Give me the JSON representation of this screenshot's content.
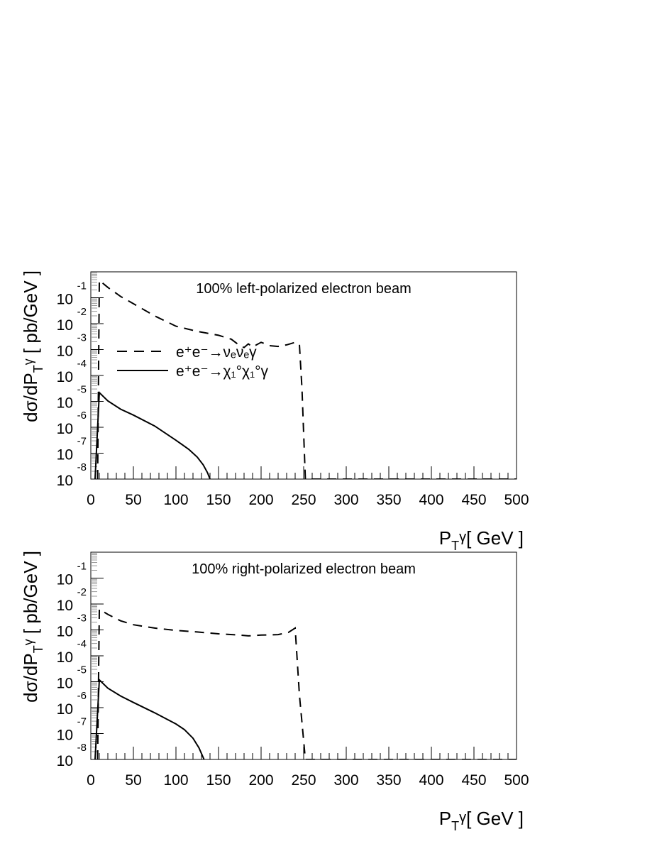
{
  "chart_data": [
    {
      "type": "line",
      "title": "100% left-polarized electron beam",
      "xlabel": {
        "main": "P",
        "sub": "T",
        "sup": "γ",
        "unit": "[ GeV  ]"
      },
      "ylabel": {
        "main": "dσ/dP",
        "sub": "T",
        "sup": "γ",
        "unit": " [ pb/GeV  ]"
      },
      "xlim": [
        0,
        500
      ],
      "ylim_log10": [
        -8,
        0
      ],
      "yscale": "log",
      "xticks": [
        0,
        50,
        100,
        150,
        200,
        250,
        300,
        350,
        400,
        450,
        500
      ],
      "ytick_base": "10",
      "ytick_exponents": [
        "-1",
        "-2",
        "-3",
        "-4",
        "-5",
        "-6",
        "-7",
        "-8"
      ],
      "legend": [
        {
          "label": "e⁺e⁻→νₑνₑγ",
          "style": "dashed"
        },
        {
          "label": "e⁺e⁻→χ₁°χ₁°γ",
          "style": "solid"
        }
      ],
      "series": [
        {
          "name": "e⁺e⁻→νₑνₑγ",
          "style": "dashed",
          "x": [
            8,
            10,
            20,
            35,
            50,
            75,
            100,
            125,
            150,
            165,
            175,
            180,
            185,
            190,
            200,
            210,
            220,
            230,
            240,
            245,
            248,
            252,
            260,
            500
          ],
          "log10_y": [
            -8,
            -0.33,
            -0.6,
            -0.95,
            -1.23,
            -1.7,
            -2.1,
            -2.3,
            -2.45,
            -2.6,
            -2.85,
            -2.92,
            -2.78,
            -2.9,
            -2.72,
            -2.85,
            -2.88,
            -2.82,
            -2.72,
            -2.8,
            -4.5,
            -8,
            -8,
            -8
          ]
        },
        {
          "name": "e⁺e⁻→χ₁°χ₁°γ",
          "style": "solid",
          "x": [
            5,
            10,
            20,
            35,
            50,
            75,
            100,
            115,
            125,
            132,
            137,
            140
          ],
          "log10_y": [
            -8,
            -4.66,
            -4.98,
            -5.3,
            -5.53,
            -5.95,
            -6.5,
            -6.85,
            -7.15,
            -7.45,
            -7.75,
            -8
          ]
        }
      ]
    },
    {
      "type": "line",
      "title": "100% right-polarized electron beam",
      "xlabel": {
        "main": "P",
        "sub": "T",
        "sup": "γ",
        "unit": "[ GeV  ]"
      },
      "ylabel": {
        "main": "dσ/dP",
        "sub": "T",
        "sup": "γ",
        "unit": " [ pb/GeV  ]"
      },
      "xlim": [
        0,
        500
      ],
      "ylim_log10": [
        -8,
        0
      ],
      "yscale": "log",
      "xticks": [
        0,
        50,
        100,
        150,
        200,
        250,
        300,
        350,
        400,
        450,
        500
      ],
      "ytick_base": "10",
      "ytick_exponents": [
        "-1",
        "-2",
        "-3",
        "-4",
        "-5",
        "-6",
        "-7",
        "-8"
      ],
      "legend": [],
      "series": [
        {
          "name": "e⁺e⁻→νₑνₑγ",
          "style": "dashed",
          "x": [
            8,
            10,
            20,
            35,
            50,
            75,
            100,
            125,
            150,
            175,
            185,
            200,
            220,
            232,
            240,
            245,
            252,
            260,
            500
          ],
          "log10_y": [
            -8,
            -2.2,
            -2.4,
            -2.65,
            -2.8,
            -2.93,
            -3.02,
            -3.08,
            -3.15,
            -3.2,
            -3.23,
            -3.2,
            -3.18,
            -3.1,
            -2.93,
            -5.5,
            -8,
            -8,
            -8
          ]
        },
        {
          "name": "e⁺e⁻→χ₁°χ₁°γ",
          "style": "solid",
          "x": [
            5,
            10,
            20,
            35,
            50,
            75,
            100,
            110,
            120,
            127,
            133
          ],
          "log10_y": [
            -8,
            -4.93,
            -5.25,
            -5.55,
            -5.8,
            -6.2,
            -6.63,
            -6.85,
            -7.18,
            -7.55,
            -8
          ]
        }
      ]
    }
  ]
}
